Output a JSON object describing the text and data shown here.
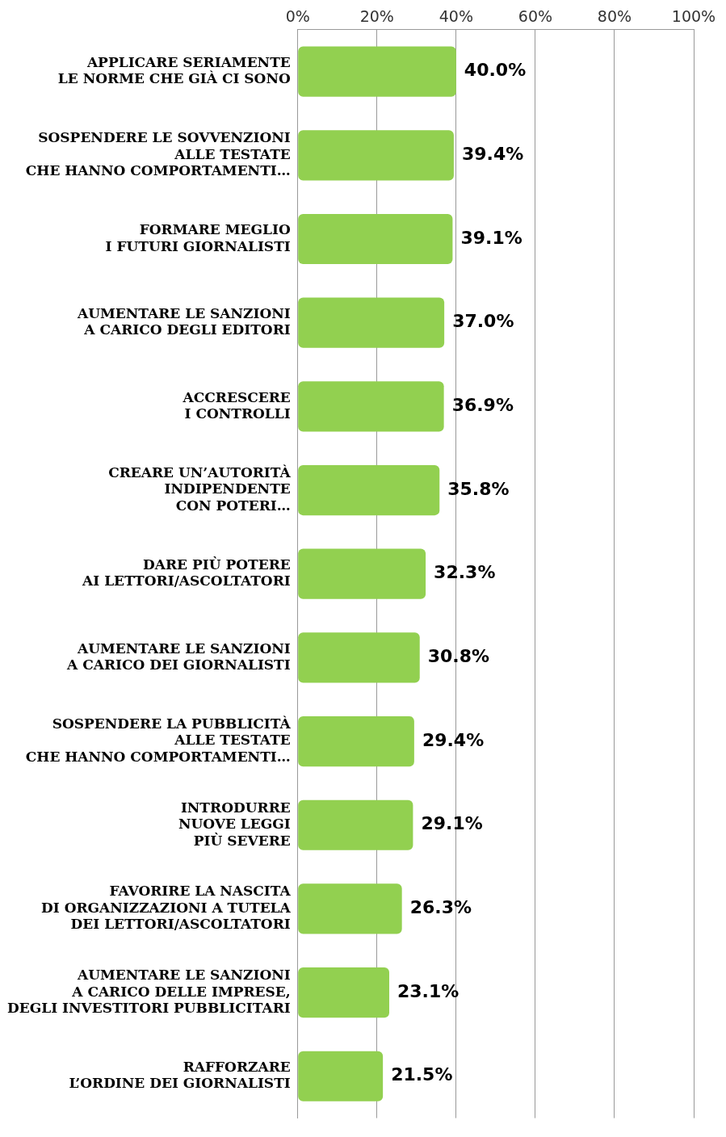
{
  "chart_data": {
    "type": "bar",
    "orientation": "horizontal",
    "categories": [
      "APPLICARE SERIAMENTE\nLE NORME CHE GIÀ CI SONO",
      "SOSPENDERE LE SOVVENZIONI\nALLE TESTATE\nCHE HANNO COMPORTAMENTI…",
      "FORMARE MEGLIO\nI FUTURI GIORNALISTI",
      "AUMENTARE LE SANZIONI\nA CARICO DEGLI EDITORI",
      "ACCRESCERE\nI CONTROLLI",
      "CREARE UN’AUTORITÀ\nINDIPENDENTE\nCON POTERI…",
      "DARE PIÙ POTERE\nAI LETTORI/ASCOLTATORI",
      "AUMENTARE LE SANZIONI\nA CARICO DEI GIORNALISTI",
      "SOSPENDERE LA PUBBLICITÀ\nALLE TESTATE\nCHE HANNO COMPORTAMENTI…",
      "INTRODURRE\nNUOVE LEGGI\nPIÙ SEVERE",
      "FAVORIRE LA NASCITA\nDI ORGANIZZAZIONI A TUTELA\nDEI LETTORI/ASCOLTATORI",
      "AUMENTARE LE SANZIONI\nA CARICO DELLE IMPRESE,\nDEGLI INVESTITORI PUBBLICITARI",
      "RAFFORZARE\nL’ORDINE DEI GIORNALISTI"
    ],
    "values": [
      40.0,
      39.4,
      39.1,
      37.0,
      36.9,
      35.8,
      32.3,
      30.8,
      29.4,
      29.1,
      26.3,
      23.1,
      21.5
    ],
    "value_labels": [
      "40.0%",
      "39.4%",
      "39.1%",
      "37.0%",
      "36.9%",
      "35.8%",
      "32.3%",
      "30.8%",
      "29.4%",
      "29.1%",
      "26.3%",
      "23.1%",
      "21.5%"
    ],
    "color": "#92d050",
    "xlim": [
      0,
      100
    ],
    "xticks": [
      {
        "value": 0,
        "label": "0%"
      },
      {
        "value": 20,
        "label": "20%"
      },
      {
        "value": 40,
        "label": "40%"
      },
      {
        "value": 60,
        "label": "60%"
      },
      {
        "value": 80,
        "label": "80%"
      },
      {
        "value": 100,
        "label": "100%"
      }
    ],
    "grid": "x",
    "legend": false
  }
}
